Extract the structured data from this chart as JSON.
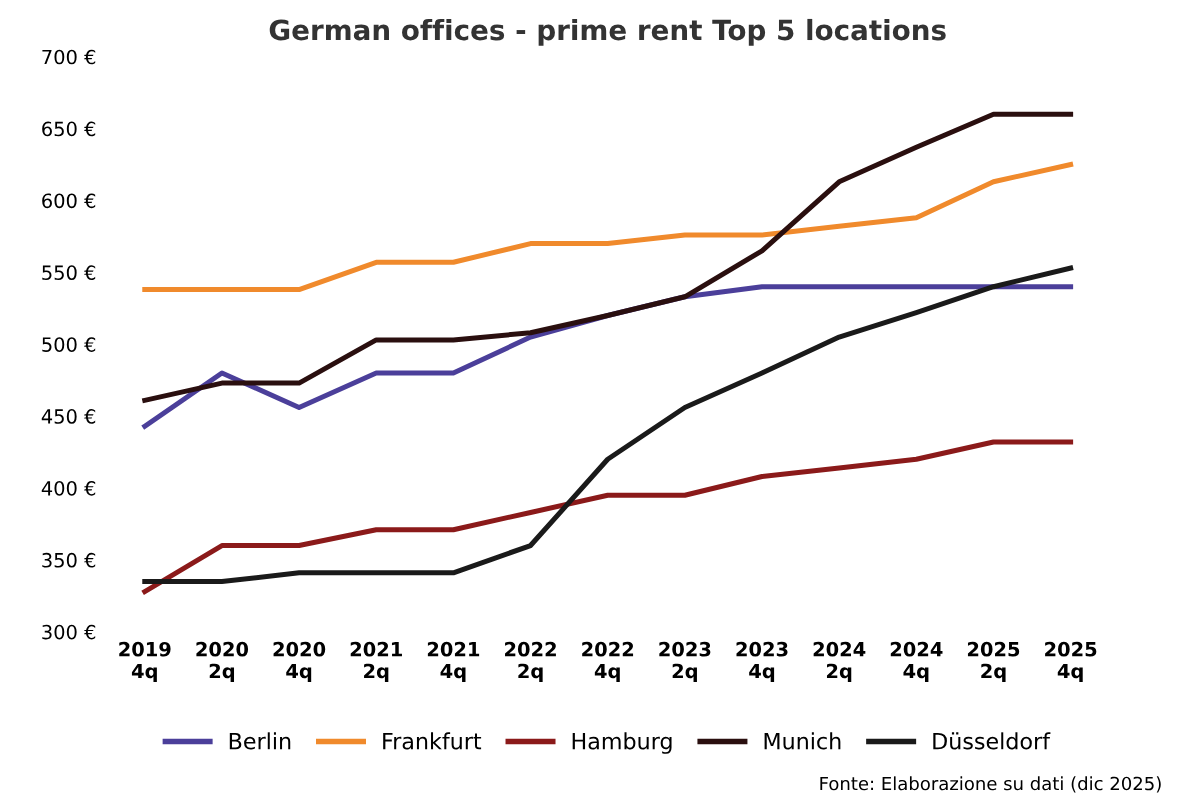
{
  "chart_data": {
    "type": "line",
    "title": "German offices - prime rent Top 5 locations",
    "categories": [
      "2019\n4q",
      "2020\n2q",
      "2020\n4q",
      "2021\n2q",
      "2021\n4q",
      "2022\n2q",
      "2022\n4q",
      "2023\n2q",
      "2023\n4q",
      "2024\n2q",
      "2024\n4q",
      "2025\n2q",
      "2025\n4q"
    ],
    "series": [
      {
        "name": "Berlin",
        "color": "#4b3f9a",
        "values": [
          443,
          480,
          456,
          480,
          480,
          505,
          520,
          533,
          540,
          540,
          540,
          540,
          540
        ]
      },
      {
        "name": "Frankfurt",
        "color": "#f08a2c",
        "values": [
          538,
          538,
          538,
          557,
          557,
          570,
          570,
          576,
          576,
          582,
          588,
          613,
          625
        ]
      },
      {
        "name": "Hamburg",
        "color": "#8b1a1a",
        "values": [
          328,
          360,
          360,
          371,
          371,
          383,
          395,
          395,
          408,
          414,
          420,
          432,
          432
        ]
      },
      {
        "name": "Munich",
        "color": "#2a0f0f",
        "values": [
          461,
          473,
          473,
          503,
          503,
          508,
          520,
          533,
          565,
          613,
          637,
          660,
          660
        ]
      },
      {
        "name": "Düsseldorf",
        "color": "#1a1a1a",
        "values": [
          335,
          335,
          341,
          341,
          341,
          360,
          420,
          456,
          480,
          505,
          522,
          540,
          553
        ]
      }
    ],
    "ylim": [
      300,
      700
    ],
    "yticks": [
      {
        "value": 300,
        "label": "300 €"
      },
      {
        "value": 350,
        "label": "350 €"
      },
      {
        "value": 400,
        "label": "400 €"
      },
      {
        "value": 450,
        "label": "450 €"
      },
      {
        "value": 500,
        "label": "500 €"
      },
      {
        "value": 550,
        "label": "550 €"
      },
      {
        "value": 600,
        "label": "600 €"
      },
      {
        "value": 650,
        "label": "650 €"
      },
      {
        "value": 700,
        "label": "700 €"
      }
    ],
    "grid": false,
    "legend": "bottom",
    "marker": "none",
    "line_style": "solid",
    "annotations": [
      "Fonte: Elaborazione su dati (dic 2025)"
    ]
  }
}
